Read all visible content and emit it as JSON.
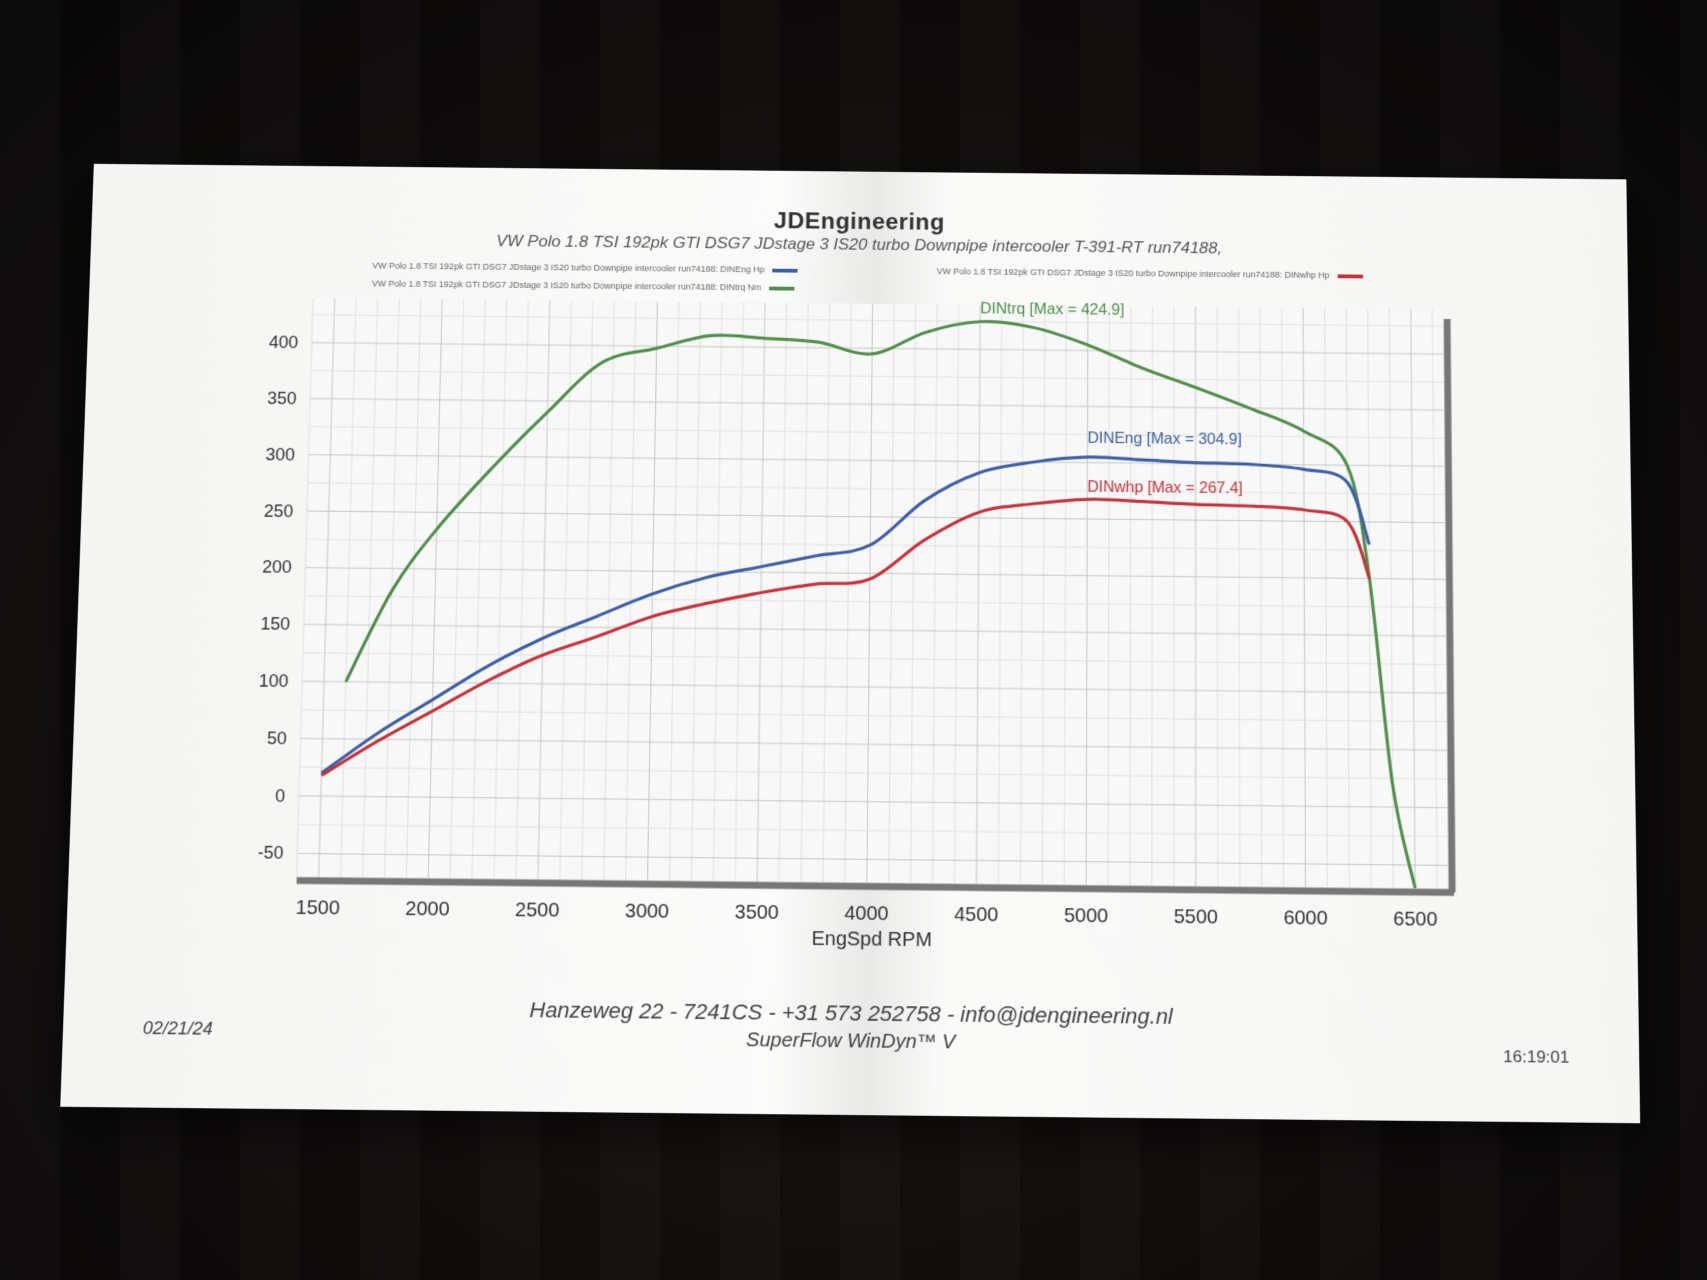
{
  "header": {
    "brand": "JDEngineering",
    "subtitle": "VW Polo 1.8 TSI 192pk  GTI    DSG7  JDstage 3   IS20  turbo  Downpipe intercooler T-391-RT    run74188,"
  },
  "legend_left": [
    {
      "text": "VW Polo 1.8 TSI 192pk  GTI   DSG7  JDstage 3   IS20  turbo  Downpipe intercooler      run74188: DINEng  Hp",
      "color": "#3d5fa8"
    },
    {
      "text": "VW Polo 1.8 TSI 192pk  GTI   DSG7  JDstage 3   IS20  turbo  Downpipe intercooler      run74188: DINtrq  Nm",
      "color": "#4f8f4a"
    }
  ],
  "legend_right": [
    {
      "text": "VW Polo 1.8 TSI 192pk  GTI   DSG7  JDstage 3   IS20  turbo  Downpipe intercooler      run74188: DINwhp  Hp",
      "color": "#c8323a"
    }
  ],
  "chart_data": {
    "type": "line",
    "xlabel": "EngSpd  RPM",
    "ylabel": "",
    "xlim": [
      1400,
      6650
    ],
    "ylim": [
      -70,
      440
    ],
    "xticks": [
      1500,
      2000,
      2500,
      3000,
      3500,
      4000,
      4500,
      5000,
      5500,
      6000,
      6500
    ],
    "yticks": [
      -50,
      0,
      50,
      100,
      150,
      200,
      250,
      300,
      350,
      400
    ],
    "grid": true,
    "series": [
      {
        "name": "DINtrq",
        "label": "DINtrq [Max = 424.9]",
        "color": "#4f8f4a",
        "x": [
          1600,
          1800,
          2000,
          2250,
          2500,
          2750,
          3000,
          3250,
          3500,
          3750,
          4000,
          4250,
          4500,
          4750,
          5000,
          5250,
          5500,
          5750,
          6000,
          6200,
          6300,
          6400,
          6500
        ],
        "y": [
          100,
          180,
          235,
          290,
          340,
          385,
          398,
          410,
          408,
          405,
          395,
          415,
          424.9,
          420,
          405,
          385,
          368,
          350,
          330,
          300,
          200,
          20,
          -70
        ]
      },
      {
        "name": "DINEng",
        "label": "DINEng [Max = 304.9]",
        "color": "#3d5fa8",
        "x": [
          1500,
          1750,
          2000,
          2250,
          2500,
          2750,
          3000,
          3250,
          3500,
          3750,
          4000,
          4250,
          4500,
          4750,
          5000,
          5250,
          5500,
          5750,
          6000,
          6200,
          6300
        ],
        "y": [
          20,
          55,
          85,
          115,
          140,
          160,
          180,
          195,
          205,
          215,
          225,
          265,
          290,
          300,
          304.9,
          303,
          301,
          300,
          296,
          285,
          230
        ]
      },
      {
        "name": "DINwhp",
        "label": "DINwhp [Max = 267.4]",
        "color": "#c8323a",
        "x": [
          1500,
          1750,
          2000,
          2250,
          2500,
          2750,
          3000,
          3250,
          3500,
          3750,
          4000,
          4250,
          4500,
          4750,
          5000,
          5250,
          5500,
          5750,
          6000,
          6200,
          6300
        ],
        "y": [
          18,
          48,
          75,
          102,
          125,
          142,
          160,
          172,
          182,
          190,
          195,
          230,
          255,
          263,
          267.4,
          266,
          264,
          263,
          260,
          250,
          200
        ]
      }
    ]
  },
  "footer": {
    "address": "Hanzeweg 22 - 7241CS -  +31 573 252758  -   info@jdengineering.nl",
    "software": "SuperFlow WinDyn™ V",
    "date": "02/21/24",
    "time": "16:19:01"
  }
}
